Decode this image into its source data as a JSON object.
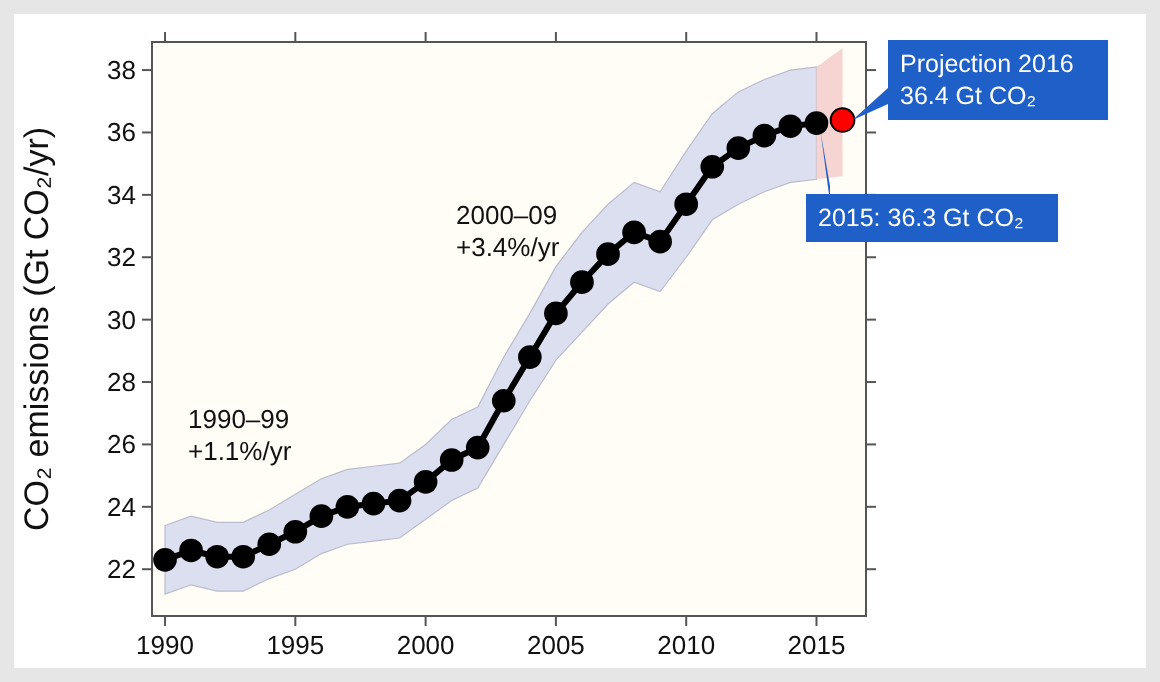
{
  "chart_data": {
    "type": "line",
    "ylabel": "CO₂ emissions (Gt CO₂/yr)",
    "xlim": [
      1989.5,
      2016.9
    ],
    "ylim": [
      20.5,
      38.9
    ],
    "xticks": [
      1990,
      1995,
      2000,
      2005,
      2010,
      2015
    ],
    "yticks": [
      22,
      24,
      26,
      28,
      30,
      32,
      34,
      36,
      38
    ],
    "marker": "circle",
    "line_style": "solid",
    "grid": false,
    "series": [
      {
        "color": "#000000",
        "x": [
          1990,
          1991,
          1992,
          1993,
          1994,
          1995,
          1996,
          1997,
          1998,
          1999,
          2000,
          2001,
          2002,
          2003,
          2004,
          2005,
          2006,
          2007,
          2008,
          2009,
          2010,
          2011,
          2012,
          2013,
          2014,
          2015
        ],
        "values": [
          22.3,
          22.6,
          22.4,
          22.4,
          22.8,
          23.2,
          23.7,
          24.0,
          24.1,
          24.2,
          24.8,
          25.5,
          25.9,
          27.4,
          28.8,
          30.2,
          31.2,
          32.1,
          32.8,
          32.5,
          33.7,
          34.9,
          35.5,
          35.9,
          36.2,
          36.3
        ],
        "lower": [
          21.2,
          21.5,
          21.3,
          21.3,
          21.7,
          22.0,
          22.5,
          22.8,
          22.9,
          23.0,
          23.6,
          24.2,
          24.6,
          26.0,
          27.4,
          28.7,
          29.6,
          30.5,
          31.2,
          30.9,
          32.0,
          33.2,
          33.7,
          34.1,
          34.4,
          34.5
        ],
        "upper": [
          23.4,
          23.7,
          23.5,
          23.5,
          23.9,
          24.4,
          24.9,
          25.2,
          25.3,
          25.4,
          26.0,
          26.8,
          27.2,
          28.8,
          30.2,
          31.7,
          32.8,
          33.7,
          34.4,
          34.1,
          35.4,
          36.6,
          37.3,
          37.7,
          38.0,
          38.1
        ]
      },
      {
        "color": "#ff0000",
        "x": [
          2015,
          2016
        ],
        "values": [
          null,
          36.4
        ],
        "lower": [
          34.5,
          34.6
        ],
        "upper": [
          38.1,
          38.7
        ]
      }
    ],
    "annotations": [
      "1990–99\n+1.1%/yr",
      "2000–09\n+3.4%/yr",
      {
        "text": "Projection 2016\n36.4 Gt CO₂",
        "x": 2016,
        "y": 36.4
      },
      {
        "text": "2015: 36.3 Gt CO₂",
        "x": 2015,
        "y": 36.3
      }
    ]
  }
}
